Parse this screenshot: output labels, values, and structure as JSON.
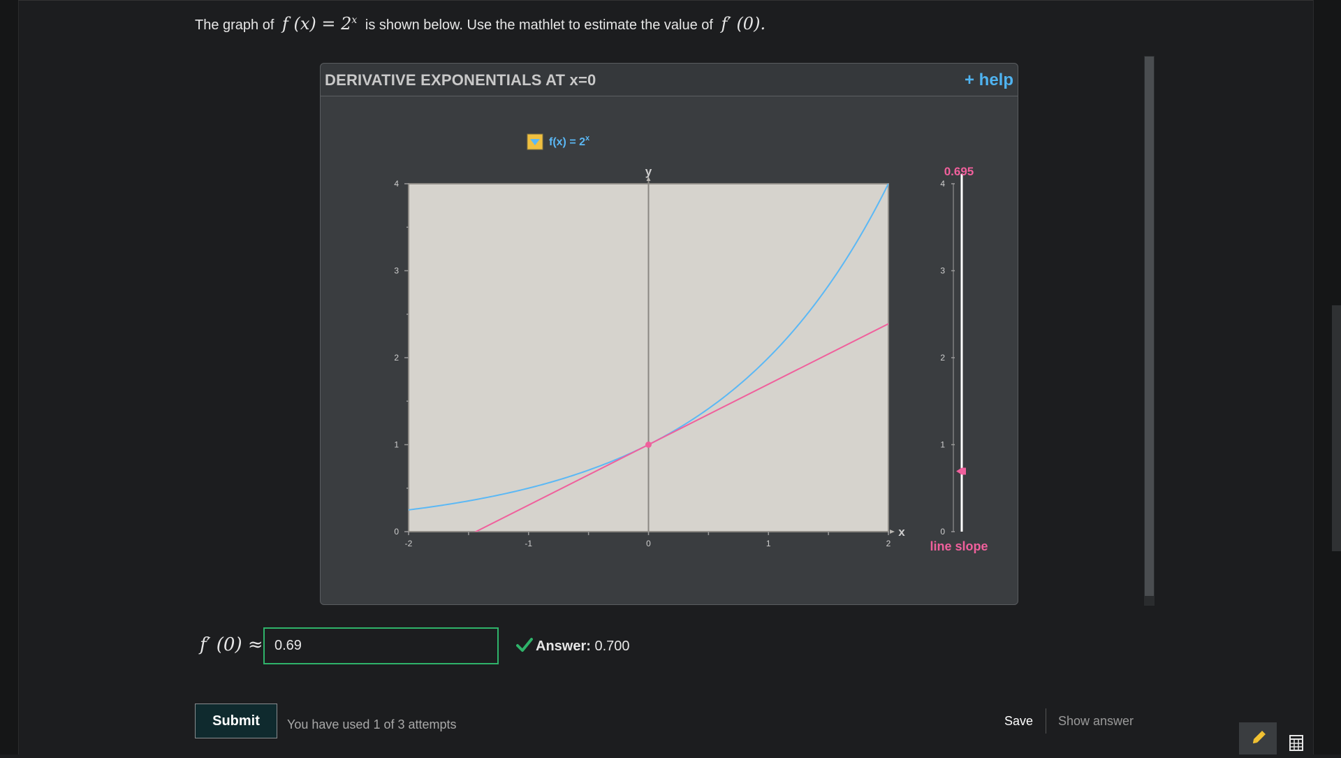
{
  "prompt": {
    "text_before": "The graph of",
    "func_math": "f (x) = 2",
    "func_exponent": "x",
    "text_middle": "is shown below. Use the mathlet to estimate the value of",
    "deriv_math": "f′ (0)."
  },
  "mathlet": {
    "title": "DERIVATIVE EXPONENTIALS AT x=0",
    "help_label": "+ help",
    "function_label": "f(x) = 2",
    "function_exponent": "x",
    "slider_value_label": "0.695",
    "slider_caption": "line slope"
  },
  "chart_data": [
    {
      "type": "line",
      "title": "",
      "xlabel": "x",
      "ylabel": "y",
      "xlim": [
        -2,
        2
      ],
      "ylim": [
        0,
        4
      ],
      "x_ticks": [
        "-2",
        "-1",
        "0",
        "1",
        "2"
      ],
      "y_ticks": [
        "0",
        "1",
        "2",
        "3",
        "4"
      ],
      "series": [
        {
          "name": "f(x) = 2^x",
          "function": "2^x",
          "color": "#5bb8f5"
        },
        {
          "name": "",
          "function": "1 + 0.695x",
          "slope": 0.695,
          "intercept": 1,
          "color": "#f0609c"
        }
      ],
      "point": {
        "x": 0,
        "y": 1
      },
      "grid": false
    },
    {
      "type": "slider",
      "label": "line slope",
      "value": 0.695,
      "range": [
        0,
        4
      ],
      "ticks": [
        "0",
        "1",
        "2",
        "3",
        "4"
      ]
    }
  ],
  "answer": {
    "label": "f′ (0) ≈",
    "input_value": "0.69",
    "feedback_label": "Answer:",
    "feedback_value": "0.700"
  },
  "actions": {
    "submit_label": "Submit",
    "attempts_text": "You have used 1 of 3 attempts",
    "save_label": "Save",
    "show_answer_label": "Show answer"
  },
  "colors": {
    "function_curve": "#5bb8f5",
    "tangent_line": "#f0609c",
    "plot_background": "#d6d3cd",
    "correct": "#2fb36a"
  },
  "icons": [
    "dropdown-icon",
    "check-icon",
    "pencil-icon",
    "calculator-icon"
  ]
}
